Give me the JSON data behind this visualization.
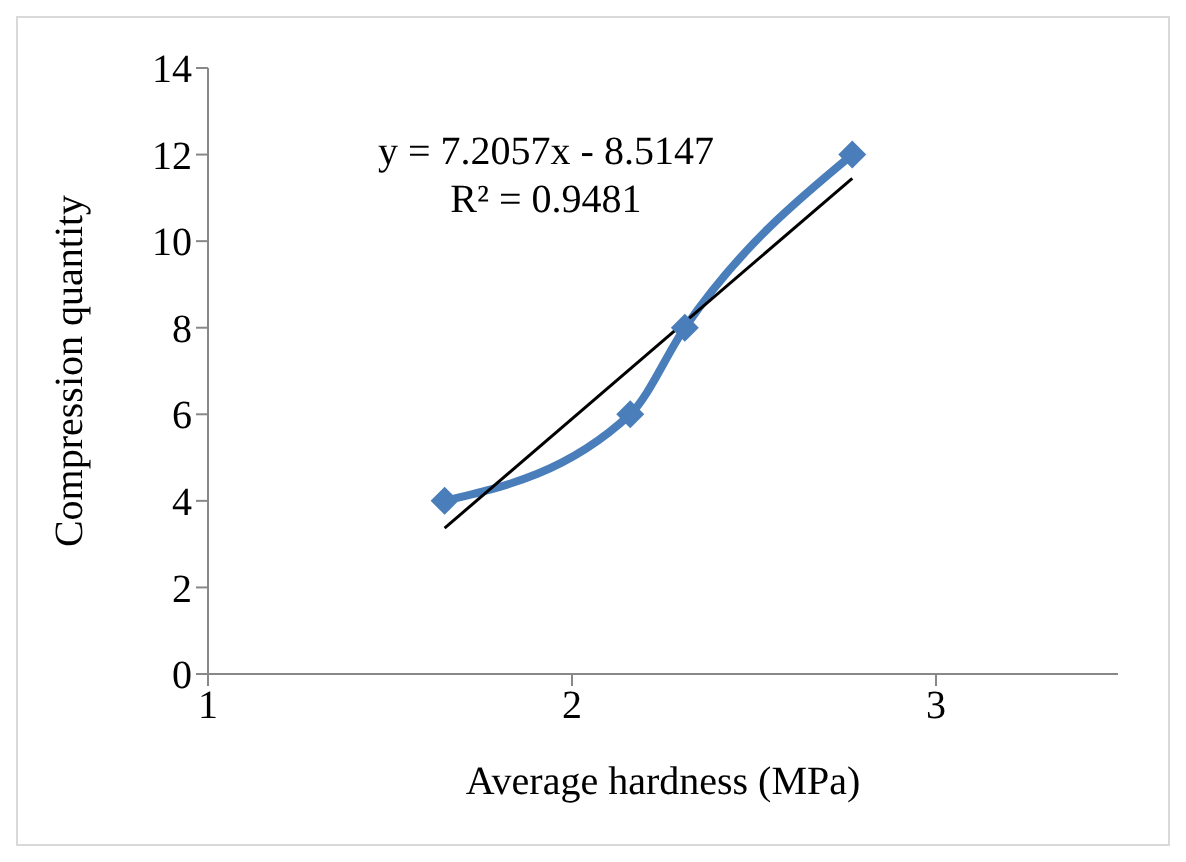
{
  "chart_data": {
    "type": "line",
    "xlabel": "Average hardness (MPa)",
    "ylabel": "Compression quantity",
    "xlim": [
      1,
      3.5
    ],
    "xticks": [
      1,
      2,
      3
    ],
    "ylim": [
      0,
      14
    ],
    "yticks": [
      0,
      2,
      4,
      6,
      8,
      10,
      12,
      14
    ],
    "grid": false,
    "legend": false,
    "marker": "diamond",
    "line_style": "solid",
    "annotations": [
      "y = 7.2057x - 8.5147",
      "R² = 0.9481"
    ],
    "series": [
      {
        "color": "#4a7ebb",
        "x": [
          1.65,
          2.16,
          2.31,
          2.77
        ],
        "values": [
          4,
          6,
          8,
          12
        ]
      },
      {
        "type": "line",
        "color": "#000000",
        "marker": "none",
        "x": [
          1.65,
          2.77
        ],
        "values": [
          3.37,
          11.45
        ]
      }
    ]
  }
}
